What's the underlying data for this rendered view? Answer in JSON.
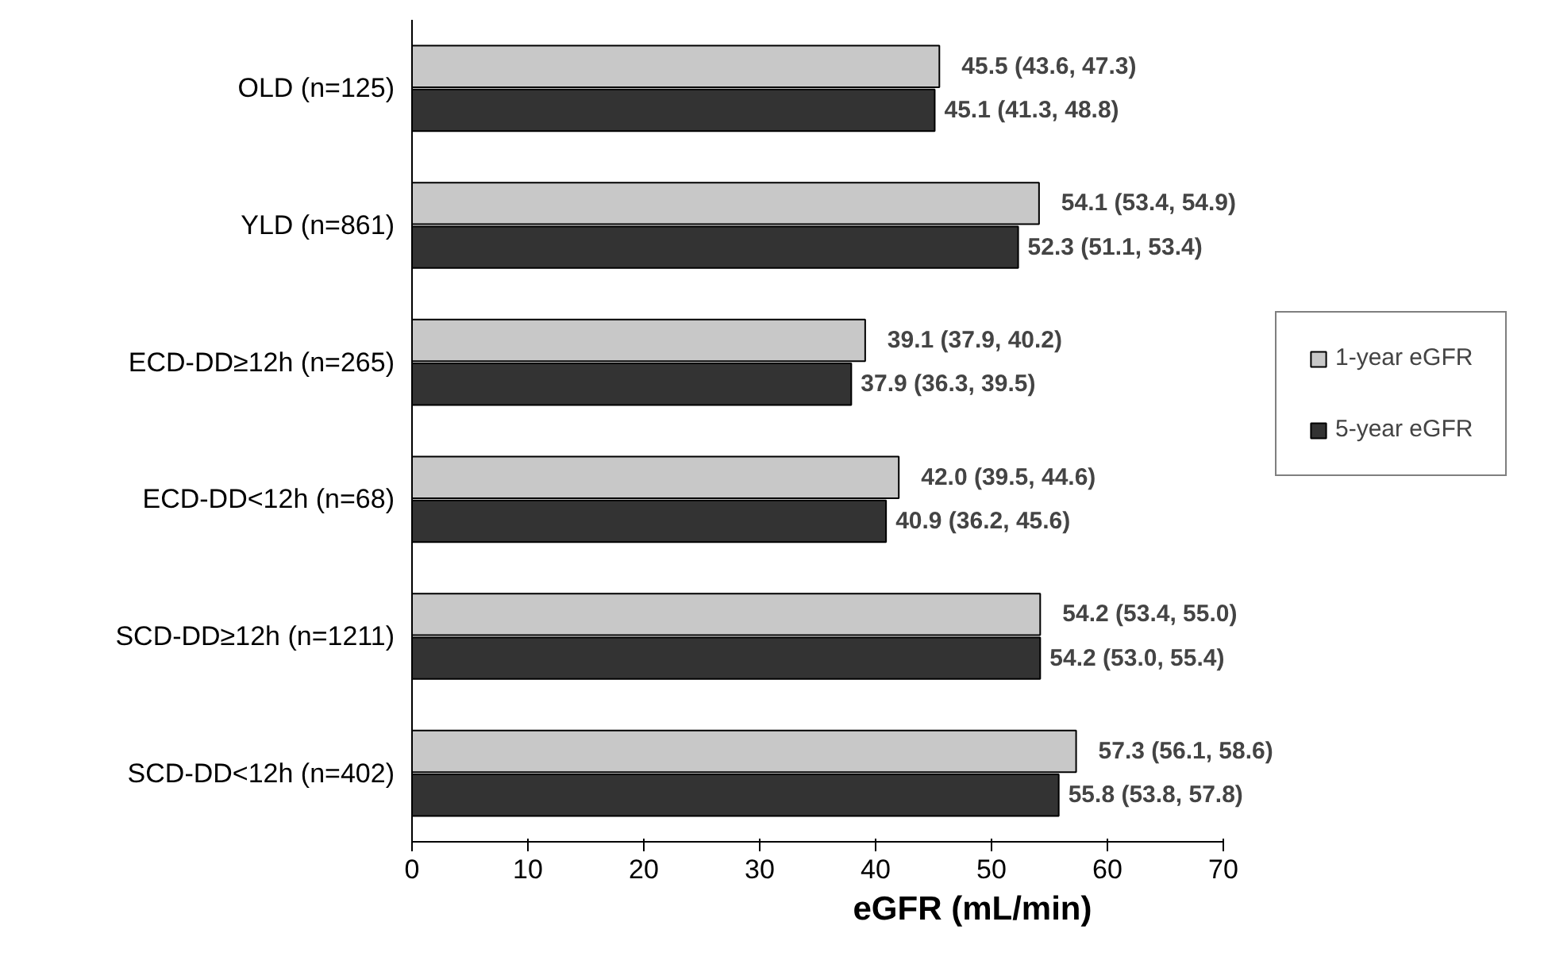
{
  "chart_data": {
    "type": "bar",
    "orientation": "horizontal",
    "xlabel": "eGFR (mL/min)",
    "categories": [
      "OLD (n=125)",
      "YLD (n=861)",
      "ECD-DD≥12h (n=265)",
      "ECD-DD<12h (n=68)",
      "SCD-DD≥12h (n=1211)",
      "SCD-DD<12h (n=402)"
    ],
    "series": [
      {
        "name": "1-year eGFR",
        "color": "#c8c8c8",
        "values": [
          45.5,
          54.1,
          39.1,
          42.0,
          54.2,
          57.3
        ],
        "value_labels": [
          "45.5 (43.6, 47.3)",
          "54.1 (53.4, 54.9)",
          "39.1 (37.9, 40.2)",
          "42.0 (39.5, 44.6)",
          "54.2 (53.4, 55.0)",
          "57.3 (56.1, 58.6)"
        ]
      },
      {
        "name": "5-year eGFR",
        "color": "#333333",
        "values": [
          45.1,
          52.3,
          37.9,
          40.9,
          54.2,
          55.8
        ],
        "value_labels": [
          "45.1 (41.3, 48.8)",
          "52.3 (51.1, 53.4)",
          "37.9 (36.3, 39.5)",
          "40.9 (36.2, 45.6)",
          "54.2 (53.0, 55.4)",
          "55.8 (53.8, 57.8)"
        ]
      }
    ],
    "xlim": [
      0,
      70
    ],
    "xticks": [
      0,
      10,
      20,
      30,
      40,
      50,
      60,
      70
    ],
    "grid": false,
    "legend": "right"
  }
}
